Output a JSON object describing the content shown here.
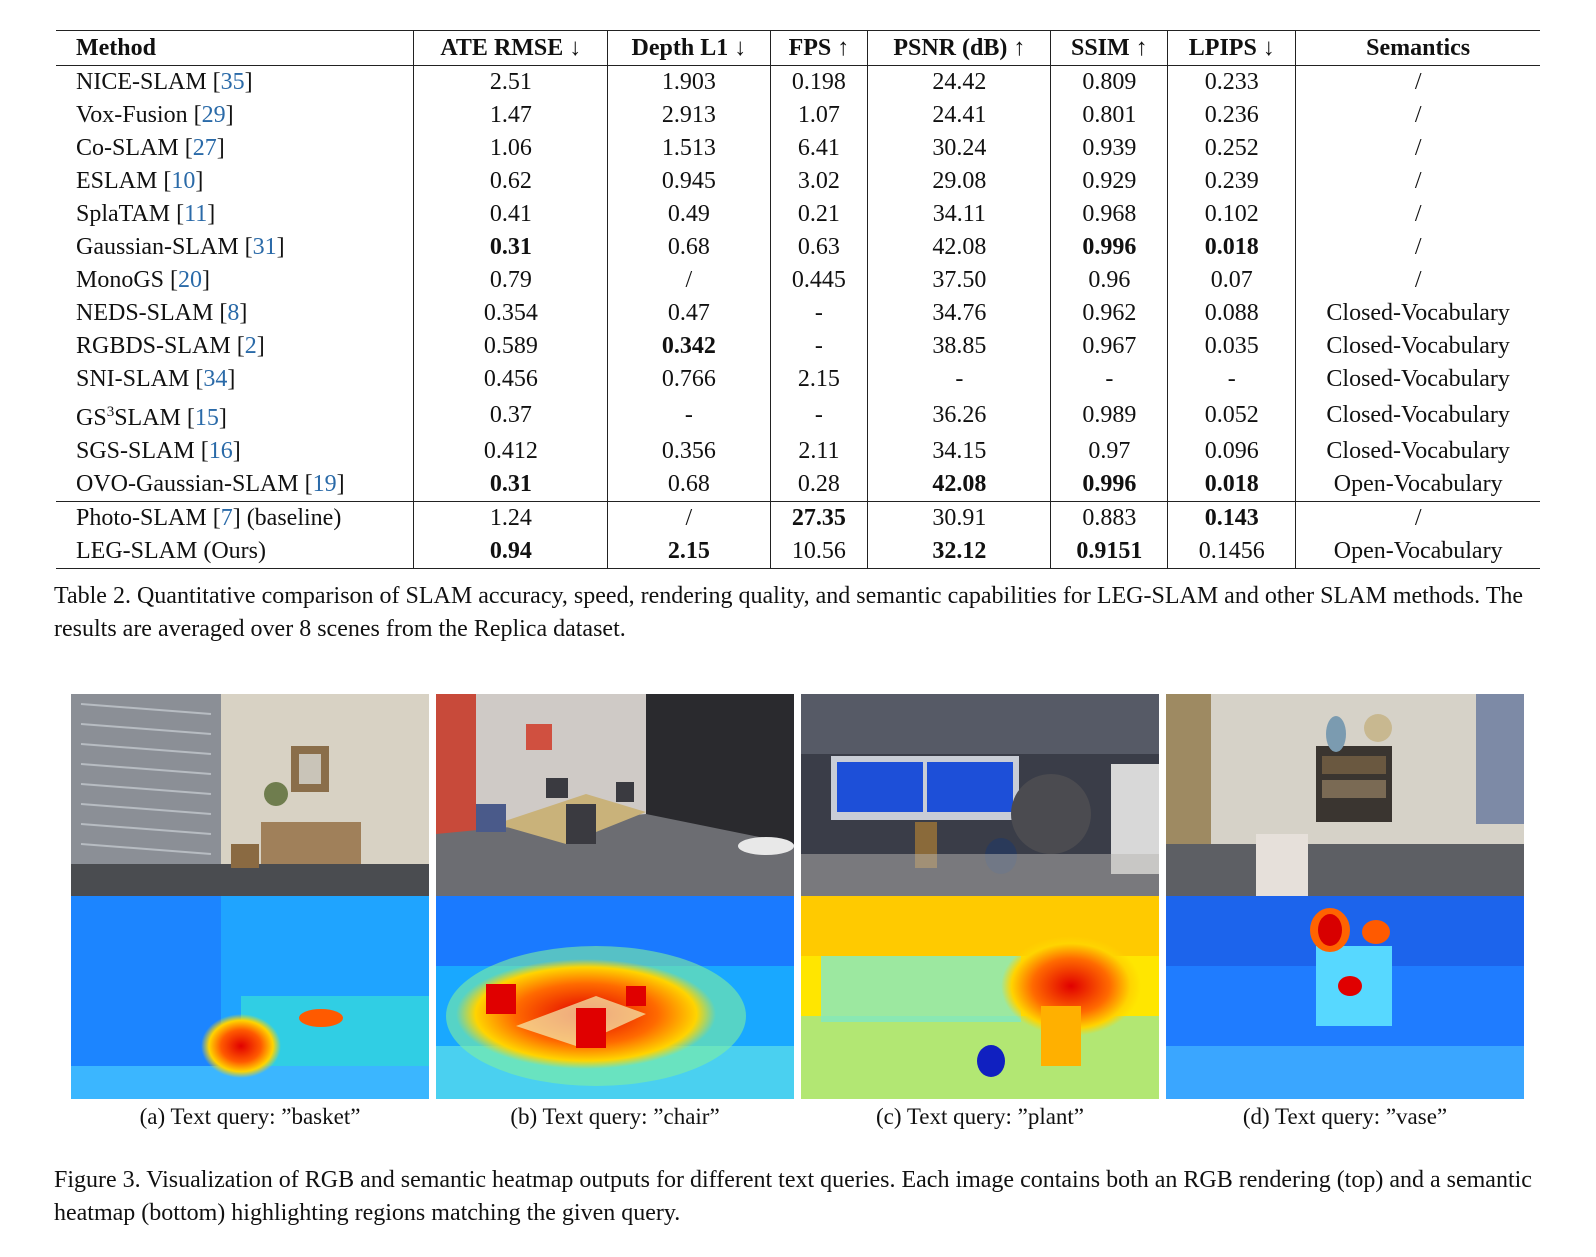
{
  "table": {
    "headers": [
      "Method",
      "ATE RMSE ↓",
      "Depth L1 ↓",
      "FPS ↑",
      "PSNR (dB) ↑",
      "SSIM ↑",
      "LPIPS ↓",
      "Semantics"
    ],
    "rows": [
      {
        "name": "NICE-SLAM",
        "ref": "35",
        "cells": [
          "2.51",
          "1.903",
          "0.198",
          "24.42",
          "0.809",
          "0.233",
          "/"
        ]
      },
      {
        "name": "Vox-Fusion",
        "ref": "29",
        "cells": [
          "1.47",
          "2.913",
          "1.07",
          "24.41",
          "0.801",
          "0.236",
          "/"
        ]
      },
      {
        "name": "Co-SLAM",
        "ref": "27",
        "cells": [
          "1.06",
          "1.513",
          "6.41",
          "30.24",
          "0.939",
          "0.252",
          "/"
        ]
      },
      {
        "name": "ESLAM",
        "ref": "10",
        "cells": [
          "0.62",
          "0.945",
          "3.02",
          "29.08",
          "0.929",
          "0.239",
          "/"
        ]
      },
      {
        "name": "SplaTAM",
        "ref": "11",
        "cells": [
          "0.41",
          "0.49",
          "0.21",
          "34.11",
          "0.968",
          "0.102",
          "/"
        ]
      },
      {
        "name": "Gaussian-SLAM",
        "ref": "31",
        "cells": [
          "0.31",
          "0.68",
          "0.63",
          "42.08",
          "0.996",
          "0.018",
          "/"
        ]
      },
      {
        "name": "MonoGS",
        "ref": "20",
        "cells": [
          "0.79",
          "/",
          "0.445",
          "37.50",
          "0.96",
          "0.07",
          "/"
        ]
      },
      {
        "name": "NEDS-SLAM",
        "ref": "8",
        "cells": [
          "0.354",
          "0.47",
          "-",
          "34.76",
          "0.962",
          "0.088",
          "Closed-Vocabulary"
        ]
      },
      {
        "name": "RGBDS-SLAM",
        "ref": "2",
        "cells": [
          "0.589",
          "0.342",
          "-",
          "38.85",
          "0.967",
          "0.035",
          "Closed-Vocabulary"
        ]
      },
      {
        "name": "SNI-SLAM",
        "ref": "34",
        "cells": [
          "0.456",
          "0.766",
          "2.15",
          "-",
          "-",
          "-",
          "Closed-Vocabulary"
        ]
      },
      {
        "name": "GS",
        "sup": "3",
        "name2": "SLAM",
        "ref": "15",
        "cells": [
          "0.37",
          "-",
          "-",
          "36.26",
          "0.989",
          "0.052",
          "Closed-Vocabulary"
        ]
      },
      {
        "name": "SGS-SLAM",
        "ref": "16",
        "cells": [
          "0.412",
          "0.356",
          "2.11",
          "34.15",
          "0.97",
          "0.096",
          "Closed-Vocabulary"
        ]
      },
      {
        "name": "OVO-Gaussian-SLAM",
        "ref": "19",
        "cells": [
          "0.31",
          "0.68",
          "0.28",
          "42.08",
          "0.996",
          "0.018",
          "Open-Vocabulary"
        ]
      },
      {
        "name": "Photo-SLAM",
        "ref": "7",
        "suffix": " (baseline)",
        "cells": [
          "1.24",
          "/",
          "27.35",
          "30.91",
          "0.883",
          "0.143",
          "/"
        ]
      },
      {
        "name": "LEG-SLAM (Ours)",
        "cells": [
          "0.94",
          "2.15",
          "10.56",
          "32.12",
          "0.9151",
          "0.1456",
          "Open-Vocabulary"
        ]
      }
    ],
    "bold": [
      [
        5,
        0
      ],
      [
        5,
        4
      ],
      [
        5,
        5
      ],
      [
        8,
        1
      ],
      [
        12,
        0
      ],
      [
        12,
        3
      ],
      [
        12,
        4
      ],
      [
        12,
        5
      ],
      [
        13,
        2
      ],
      [
        13,
        5
      ],
      [
        14,
        0
      ],
      [
        14,
        1
      ],
      [
        14,
        3
      ],
      [
        14,
        4
      ]
    ]
  },
  "table_caption": "Table 2. Quantitative comparison of SLAM accuracy, speed, rendering quality, and semantic capabilities for LEG-SLAM and other SLAM methods. The results are averaged over 8 scenes from the Replica dataset.",
  "figure": {
    "subcaptions": [
      "(a) Text query: ”basket”",
      "(b) Text query: ”chair”",
      "(c) Text query: ”plant”",
      "(d) Text query: ”vase”"
    ],
    "caption": "Figure 3. Visualization of RGB and semantic heatmap outputs for different text queries. Each image contains both an RGB rendering (top) and a semantic heatmap (bottom) highlighting regions matching the given query."
  }
}
